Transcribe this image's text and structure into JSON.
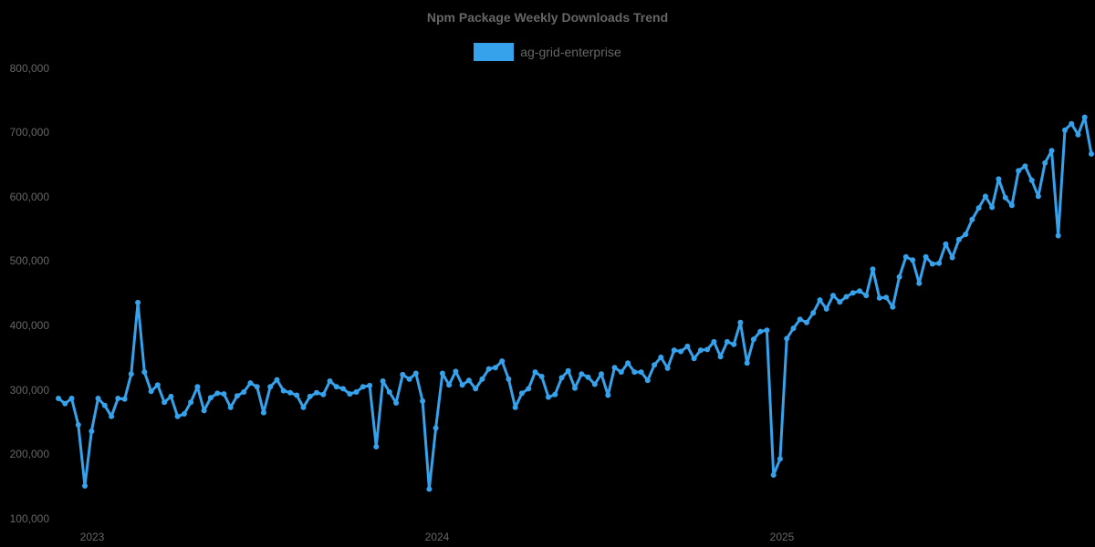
{
  "chart_data": {
    "type": "line",
    "title": "Npm Package Weekly Downloads Trend",
    "xlabel": "",
    "ylabel": "",
    "ylim": [
      100000,
      800000
    ],
    "y_ticks": [
      "800,000",
      "700,000",
      "600,000",
      "500,000",
      "400,000",
      "300,000",
      "200,000",
      "100,000"
    ],
    "x_ticks": [
      "2023",
      "2024",
      "2025"
    ],
    "grid": false,
    "legend_position": "top",
    "series": [
      {
        "name": "ag-grid-enterprise",
        "color": "#36a2eb",
        "values": [
          287000,
          279000,
          287000,
          246000,
          151000,
          236000,
          287000,
          276000,
          259000,
          287000,
          286000,
          325000,
          436000,
          328000,
          298000,
          308000,
          281000,
          290000,
          259000,
          263000,
          281000,
          305000,
          268000,
          288000,
          295000,
          294000,
          273000,
          291000,
          297000,
          311000,
          305000,
          265000,
          305000,
          316000,
          299000,
          296000,
          292000,
          273000,
          290000,
          296000,
          293000,
          314000,
          305000,
          302000,
          294000,
          297000,
          305000,
          307000,
          212000,
          314000,
          297000,
          280000,
          324000,
          317000,
          326000,
          283000,
          146000,
          241000,
          326000,
          308000,
          329000,
          308000,
          315000,
          302000,
          317000,
          333000,
          335000,
          345000,
          317000,
          273000,
          295000,
          302000,
          328000,
          321000,
          289000,
          293000,
          319000,
          330000,
          303000,
          325000,
          320000,
          309000,
          325000,
          292000,
          335000,
          328000,
          342000,
          328000,
          328000,
          315000,
          339000,
          351000,
          334000,
          362000,
          360000,
          368000,
          349000,
          362000,
          363000,
          375000,
          352000,
          375000,
          371000,
          405000,
          342000,
          379000,
          391000,
          393000,
          168000,
          193000,
          380000,
          396000,
          410000,
          405000,
          420000,
          440000,
          426000,
          447000,
          437000,
          445000,
          451000,
          454000,
          447000,
          488000,
          443000,
          444000,
          429000,
          476000,
          507000,
          502000,
          466000,
          507000,
          496000,
          497000,
          527000,
          506000,
          534000,
          542000,
          565000,
          583000,
          601000,
          584000,
          628000,
          599000,
          587000,
          641000,
          648000,
          626000,
          601000,
          653000,
          672000,
          540000,
          704000,
          714000,
          697000,
          724000,
          667000
        ]
      }
    ]
  }
}
